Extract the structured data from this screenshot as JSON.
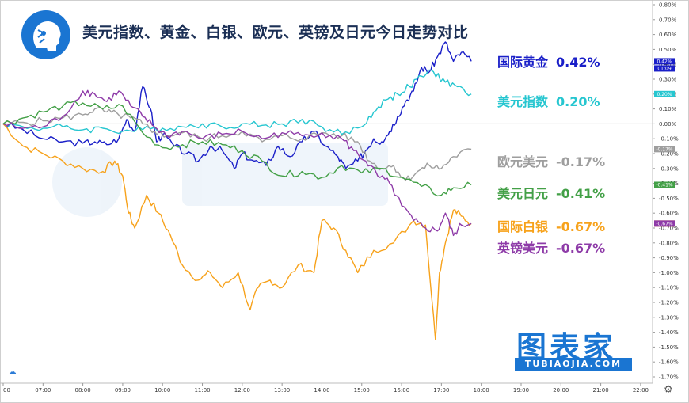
{
  "title": "美元指数、黄金、白银、欧元、英镑及日元今日走势对比",
  "watermark": {
    "brand": "图表家",
    "domain": "TUBIAOJIA.COM"
  },
  "current_time_tag": "01:09",
  "colors": {
    "gold": "#1a1fc8",
    "dxy": "#26c6d0",
    "eurusd": "#9e9e9e",
    "usdjpy": "#43a047",
    "silver": "#f7a21b",
    "gbpusd": "#8e3ba8"
  },
  "legend": [
    {
      "key": "gold",
      "name": "国际黄金",
      "value": "0.42%"
    },
    {
      "key": "dxy",
      "name": "美元指数",
      "value": "0.20%"
    },
    {
      "key": "eurusd",
      "name": "欧元美元",
      "value": "-0.17%"
    },
    {
      "key": "usdjpy",
      "name": "美元日元",
      "value": "-0.41%"
    },
    {
      "key": "silver",
      "name": "国际白银",
      "value": "-0.67%"
    },
    {
      "key": "gbpusd",
      "name": "英镑美元",
      "value": "-0.67%"
    }
  ],
  "chart_data": {
    "type": "line",
    "title": "美元指数、黄金、白银、欧元、英镑及日元今日走势对比",
    "xlabel": "",
    "ylabel": "",
    "x_ticks": [
      "00",
      "07:00",
      "08:00",
      "09:00",
      "10:00",
      "11:00",
      "12:00",
      "13:00",
      "14:00",
      "15:00",
      "16:00",
      "17:00",
      "18:00",
      "19:00",
      "20:00",
      "21:00",
      "22:00"
    ],
    "x_range": [
      6.0,
      22.3
    ],
    "y_ticks": [
      "0.80%",
      "0.70%",
      "0.60%",
      "0.50%",
      "0.40%",
      "0.30%",
      "0.20%",
      "0.10%",
      "0.00%",
      "-0.10%",
      "-0.20%",
      "-0.30%",
      "-0.40%",
      "-0.50%",
      "-0.60%",
      "-0.70%",
      "-0.80%",
      "-0.90%",
      "-1.00%",
      "-1.10%",
      "-1.20%",
      "-1.30%",
      "-1.40%",
      "-1.50%",
      "-1.60%",
      "-1.70%"
    ],
    "ylim": [
      -1.7,
      0.8
    ],
    "series": [
      {
        "key": "gold",
        "name": "国际黄金",
        "last_label": "0.42%",
        "x": [
          6.0,
          6.5,
          7.0,
          7.5,
          8.0,
          8.3,
          8.6,
          8.9,
          9.1,
          9.3,
          9.5,
          9.7,
          9.85,
          10.0,
          10.3,
          10.6,
          10.9,
          11.2,
          11.5,
          11.8,
          12.0,
          12.3,
          12.6,
          12.9,
          13.2,
          13.5,
          13.8,
          14.1,
          14.4,
          14.6,
          14.9,
          15.1,
          15.3,
          15.5,
          15.7,
          15.9,
          16.1,
          16.3,
          16.5,
          16.7,
          16.9,
          17.1,
          17.3,
          17.5,
          17.75
        ],
        "y": [
          0.0,
          -0.04,
          -0.1,
          -0.12,
          -0.13,
          -0.12,
          -0.14,
          -0.1,
          0.03,
          -0.05,
          0.25,
          0.1,
          -0.12,
          -0.07,
          -0.15,
          -0.2,
          -0.25,
          -0.15,
          -0.18,
          -0.3,
          -0.2,
          -0.25,
          -0.28,
          -0.15,
          -0.22,
          -0.12,
          -0.05,
          -0.15,
          -0.22,
          -0.3,
          -0.25,
          -0.18,
          -0.1,
          -0.12,
          -0.05,
          0.05,
          0.15,
          0.22,
          0.38,
          0.35,
          0.45,
          0.55,
          0.42,
          0.48,
          0.42
        ]
      },
      {
        "key": "dxy",
        "name": "美元指数",
        "last_label": "0.20%",
        "x": [
          6.0,
          6.5,
          7.0,
          7.5,
          8.0,
          8.5,
          9.0,
          9.5,
          10.0,
          10.5,
          11.0,
          11.5,
          12.0,
          12.5,
          13.0,
          13.5,
          14.0,
          14.5,
          15.0,
          15.3,
          15.6,
          15.9,
          16.2,
          16.5,
          16.8,
          17.1,
          17.4,
          17.75
        ],
        "y": [
          0.0,
          -0.02,
          -0.03,
          -0.02,
          -0.04,
          -0.03,
          -0.05,
          -0.04,
          -0.03,
          -0.02,
          0.0,
          -0.02,
          0.0,
          -0.01,
          0.0,
          0.03,
          -0.02,
          -0.07,
          -0.02,
          0.08,
          0.16,
          0.2,
          0.25,
          0.32,
          0.35,
          0.28,
          0.25,
          0.2
        ]
      },
      {
        "key": "eurusd",
        "name": "欧元美元",
        "last_label": "-0.17%",
        "x": [
          6.0,
          6.5,
          7.0,
          7.5,
          8.0,
          8.3,
          8.6,
          8.9,
          9.2,
          9.5,
          9.8,
          10.1,
          10.5,
          11.0,
          11.5,
          12.0,
          12.5,
          13.0,
          13.5,
          14.0,
          14.5,
          14.9,
          15.2,
          15.5,
          15.8,
          16.1,
          16.4,
          16.7,
          17.0,
          17.3,
          17.75
        ],
        "y": [
          0.0,
          0.01,
          0.02,
          0.04,
          0.06,
          0.1,
          0.08,
          0.06,
          0.04,
          0.0,
          -0.05,
          -0.08,
          -0.06,
          -0.1,
          -0.08,
          -0.05,
          -0.12,
          -0.08,
          -0.1,
          -0.06,
          -0.08,
          -0.12,
          -0.25,
          -0.3,
          -0.28,
          -0.38,
          -0.32,
          -0.28,
          -0.3,
          -0.22,
          -0.17
        ]
      },
      {
        "key": "usdjpy",
        "name": "美元日元",
        "last_label": "-0.41%",
        "x": [
          6.0,
          6.5,
          7.0,
          7.5,
          8.0,
          8.5,
          9.0,
          9.5,
          10.0,
          10.5,
          11.0,
          11.5,
          12.0,
          12.5,
          13.0,
          13.5,
          14.0,
          14.5,
          15.0,
          15.5,
          16.0,
          16.5,
          17.0,
          17.3,
          17.75
        ],
        "y": [
          0.0,
          0.04,
          0.08,
          0.12,
          0.14,
          0.1,
          0.12,
          -0.06,
          -0.16,
          -0.14,
          -0.12,
          -0.14,
          -0.18,
          -0.25,
          -0.35,
          -0.32,
          -0.36,
          -0.28,
          -0.33,
          -0.3,
          -0.36,
          -0.42,
          -0.48,
          -0.43,
          -0.41
        ]
      },
      {
        "key": "silver",
        "name": "国际白银",
        "last_label": "-0.67%",
        "x": [
          6.0,
          6.5,
          7.0,
          7.5,
          8.0,
          8.5,
          8.8,
          9.0,
          9.15,
          9.3,
          9.6,
          9.9,
          10.2,
          10.5,
          10.9,
          11.2,
          11.5,
          11.9,
          12.2,
          12.4,
          12.7,
          13.0,
          13.4,
          13.8,
          14.0,
          14.3,
          14.6,
          14.9,
          15.3,
          15.8,
          16.3,
          16.6,
          16.85,
          16.95,
          17.1,
          17.3,
          17.5,
          17.75
        ],
        "y": [
          0.0,
          -0.15,
          -0.2,
          -0.25,
          -0.3,
          -0.32,
          -0.25,
          -0.35,
          -0.6,
          -0.7,
          -0.48,
          -0.6,
          -0.75,
          -0.95,
          -1.05,
          -1.0,
          -1.1,
          -1.0,
          -1.25,
          -1.1,
          -1.05,
          -1.1,
          -0.95,
          -1.0,
          -0.65,
          -0.7,
          -0.85,
          -1.0,
          -0.85,
          -0.8,
          -0.65,
          -0.68,
          -1.45,
          -1.0,
          -0.8,
          -0.58,
          -0.62,
          -0.67
        ]
      },
      {
        "key": "gbpusd",
        "name": "英镑美元",
        "last_label": "-0.67%",
        "x": [
          6.0,
          6.5,
          7.0,
          7.5,
          8.0,
          8.3,
          8.6,
          8.9,
          9.2,
          9.5,
          9.8,
          10.1,
          10.5,
          11.0,
          11.5,
          12.0,
          12.5,
          13.0,
          13.5,
          14.0,
          14.5,
          14.8,
          15.1,
          15.4,
          15.7,
          16.0,
          16.3,
          16.6,
          16.9,
          17.1,
          17.3,
          17.5,
          17.75
        ],
        "y": [
          0.0,
          -0.03,
          -0.02,
          0.05,
          0.22,
          0.2,
          0.15,
          0.22,
          0.12,
          0.05,
          -0.02,
          -0.08,
          -0.05,
          -0.1,
          -0.07,
          -0.05,
          -0.1,
          -0.06,
          -0.08,
          -0.06,
          -0.1,
          -0.18,
          -0.25,
          -0.35,
          -0.4,
          -0.55,
          -0.65,
          -0.7,
          -0.72,
          -0.6,
          -0.75,
          -0.68,
          -0.67
        ]
      }
    ]
  }
}
